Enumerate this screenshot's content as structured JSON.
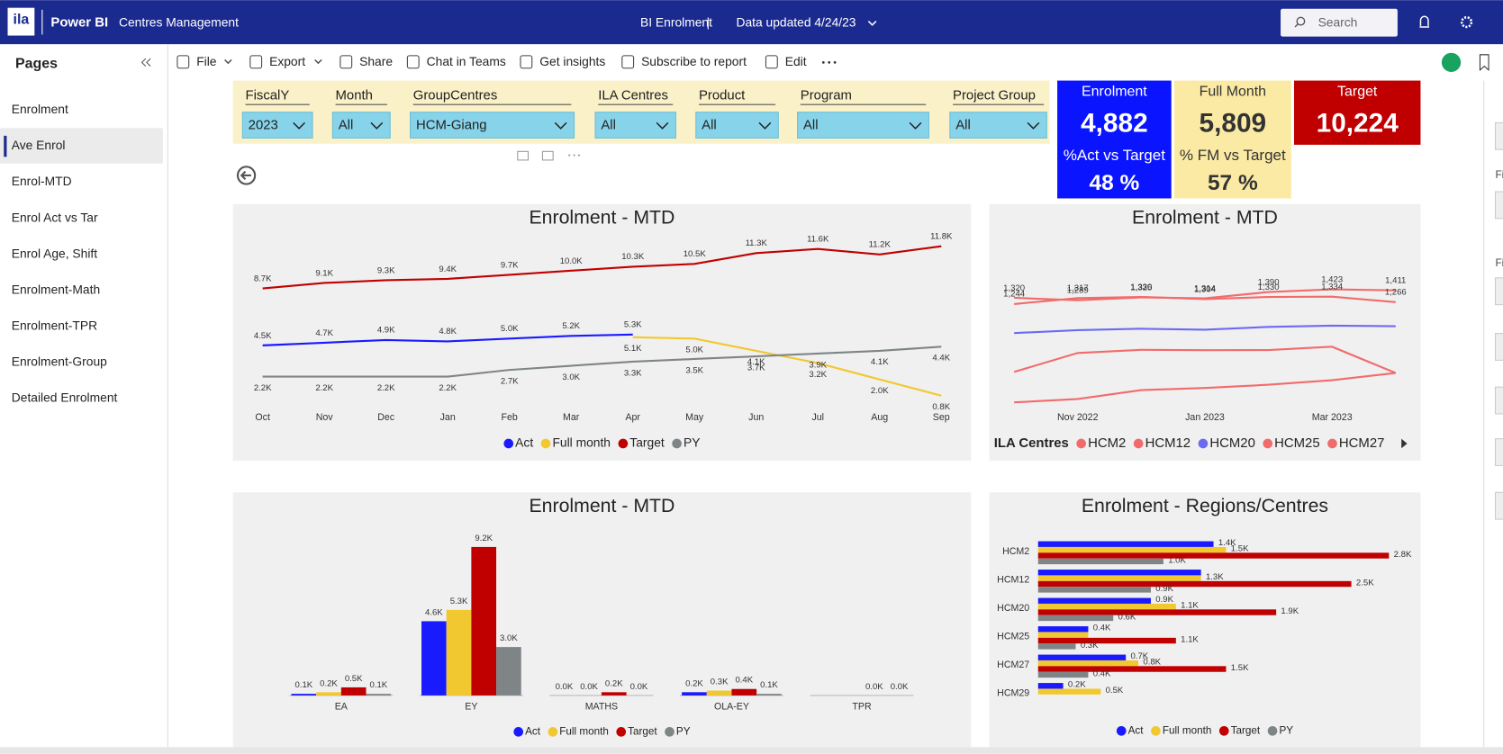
{
  "header": {
    "logo": "ila",
    "app": "Power BI",
    "workspace": "Centres Management",
    "report": "BI Enrolment",
    "separator": "|",
    "updated": "Data updated 4/24/23",
    "search": "Search"
  },
  "toolbar": [
    "File",
    "Export",
    "Share",
    "Chat in Teams",
    "Get insights",
    "Subscribe to report",
    "Edit"
  ],
  "pages": {
    "title": "Pages",
    "items": [
      "Enrolment",
      "Ave Enrol",
      "Enrol-MTD",
      "Enrol Act vs Tar",
      "Enrol Age, Shift",
      "Enrolment-Math",
      "Enrolment-TPR",
      "Enrolment-Group",
      "Detailed Enrolment"
    ],
    "active": 1
  },
  "filters": [
    {
      "label": "FiscalY",
      "value": "2023"
    },
    {
      "label": "Month",
      "value": "All"
    },
    {
      "label": "GroupCentres",
      "value": "HCM-Giang"
    },
    {
      "label": "ILA Centres",
      "value": "All"
    },
    {
      "label": "Product",
      "value": "All"
    },
    {
      "label": "Program",
      "value": "All"
    },
    {
      "label": "Project Group",
      "value": "All"
    }
  ],
  "cards": [
    {
      "title": "Enrolment",
      "value": "4,882",
      "subtitle": "%Act vs Target",
      "subvalue": "48 %"
    },
    {
      "title": "Full Month",
      "value": "5,809",
      "subtitle": "% FM vs Target",
      "subvalue": "57 %"
    },
    {
      "title": "Target",
      "value": "10,224"
    }
  ],
  "right_pane": [
    "Fi",
    "Fi"
  ],
  "chart_data": [
    {
      "type": "line",
      "title": "Enrolment - MTD",
      "categories": [
        "Oct",
        "Nov",
        "Dec",
        "Jan",
        "Feb",
        "Mar",
        "Apr",
        "May",
        "Jun",
        "Jul",
        "Aug",
        "Sep"
      ],
      "series": [
        {
          "name": "Act",
          "color": "#1a1aff",
          "values": [
            4.5,
            4.7,
            4.9,
            4.8,
            5.0,
            5.2,
            5.3,
            null,
            null,
            null,
            null,
            null
          ],
          "value_labels": [
            "4.5K",
            "4.7K",
            "4.9K",
            "4.8K",
            "5.0K",
            "5.2K",
            "5.3K",
            null,
            null,
            null,
            null,
            null
          ]
        },
        {
          "name": "Full month",
          "color": "#f2c830",
          "values": [
            null,
            null,
            null,
            null,
            null,
            null,
            5.1,
            5.0,
            4.1,
            3.2,
            2.0,
            0.8
          ],
          "value_labels": [
            null,
            null,
            null,
            null,
            null,
            null,
            "5.1K",
            "5.0K",
            "4.1K",
            "3.2K",
            "2.0K",
            "0.8K"
          ]
        },
        {
          "name": "Target",
          "color": "#c00000",
          "values": [
            8.7,
            9.1,
            9.3,
            9.4,
            9.7,
            10.0,
            10.3,
            10.5,
            11.3,
            11.6,
            11.2,
            11.8
          ],
          "value_labels": [
            "8.7K",
            "9.1K",
            "9.3K",
            "9.4K",
            "9.7K",
            "10.0K",
            "10.3K",
            "10.5K",
            "11.3K",
            "11.6K",
            "11.2K",
            "11.8K"
          ]
        },
        {
          "name": "PY",
          "color": "#7f8587",
          "values": [
            2.2,
            2.2,
            2.2,
            2.2,
            2.7,
            3.0,
            3.3,
            3.5,
            3.7,
            3.9,
            4.1,
            4.4
          ],
          "value_labels": [
            "2.2K",
            "2.2K",
            "2.2K",
            "2.2K",
            "2.7K",
            "3.0K",
            "3.3K",
            "3.5K",
            "3.7K",
            "3.9K",
            "4.1K",
            "4.4K"
          ]
        }
      ],
      "legend": "bottom"
    },
    {
      "type": "line",
      "title": "Enrolment - MTD",
      "categories": [
        null,
        "Nov 2022",
        null,
        "Jan 2023",
        null,
        "Mar 2023",
        null
      ],
      "legend_title": "ILA Centres",
      "series": [
        {
          "name": "HCM2",
          "color": "#f26b6b",
          "values": [
            1320,
            1289,
            1325,
            1314,
            1390,
            1423,
            1411
          ],
          "value_labels": [
            "1,320",
            "1,289",
            "1,325",
            "1,314",
            "1,390",
            "1,423",
            "1,411"
          ]
        },
        {
          "name": "HCM12",
          "color": "#f26b6b",
          "values": [
            1244,
            1317,
            1330,
            1304,
            1330,
            1334,
            1266
          ],
          "value_labels": [
            "1,244",
            "1,317",
            "1,330",
            "1,304",
            "1,330",
            "1,334",
            "1,266"
          ]
        },
        {
          "name": "HCM20",
          "color": "#6b6bf2",
          "values": [
            889,
            924,
            942,
            930,
            964,
            979,
            972
          ]
        },
        {
          "name": "HCM25",
          "color": "#f26b6b",
          "values": [
            413,
            645,
            684,
            679,
            680,
            722,
            401
          ]
        },
        {
          "name": "HCM27",
          "color": "#f26b6b",
          "values": [
            41,
            82,
            191,
            218,
            256,
            313,
            401
          ]
        }
      ],
      "legend": "bottom"
    },
    {
      "type": "bar",
      "title": "Enrolment - MTD",
      "categories": [
        "EA",
        "EY",
        "MATHS",
        "OLA-EY",
        "TPR"
      ],
      "series": [
        {
          "name": "Act",
          "color": "#1a1aff",
          "values": [
            0.1,
            4.6,
            0.0,
            0.2,
            null
          ],
          "value_labels": [
            "0.1K",
            "4.6K",
            "0.0K",
            "0.2K",
            null
          ]
        },
        {
          "name": "Full month",
          "color": "#f2c830",
          "values": [
            0.2,
            5.3,
            0.0,
            0.3,
            null
          ],
          "value_labels": [
            "0.2K",
            "5.3K",
            "0.0K",
            "0.3K",
            null
          ]
        },
        {
          "name": "Target",
          "color": "#c00000",
          "values": [
            0.5,
            9.2,
            0.2,
            0.4,
            0.0
          ],
          "value_labels": [
            "0.5K",
            "9.2K",
            "0.2K",
            "0.4K",
            "0.0K"
          ]
        },
        {
          "name": "PY",
          "color": "#7f8587",
          "values": [
            0.1,
            3.0,
            0.0,
            0.1,
            0.0
          ],
          "value_labels": [
            "0.1K",
            "3.0K",
            "0.0K",
            "0.1K",
            "0.0K"
          ]
        }
      ],
      "legend": "bottom"
    },
    {
      "type": "hbar",
      "title": "Enrolment - Regions/Centres",
      "categories": [
        "HCM2",
        "HCM12",
        "HCM20",
        "HCM25",
        "HCM27",
        "HCM29"
      ],
      "series": [
        {
          "name": "Act",
          "color": "#1a1aff",
          "values": [
            1.4,
            1.3,
            0.9,
            0.4,
            0.7,
            0.2
          ],
          "value_labels": [
            "1.4K",
            null,
            "0.9K",
            "0.4K",
            "0.7K",
            "0.2K"
          ]
        },
        {
          "name": "Full month",
          "color": "#f2c830",
          "values": [
            1.5,
            1.3,
            1.1,
            0.4,
            0.8,
            0.5
          ],
          "value_labels": [
            "1.5K",
            "1.3K",
            "1.1K",
            null,
            "0.8K",
            "0.5K"
          ]
        },
        {
          "name": "Target",
          "color": "#c00000",
          "values": [
            2.8,
            2.5,
            1.9,
            1.1,
            1.5,
            null
          ],
          "value_labels": [
            "2.8K",
            "2.5K",
            "1.9K",
            "1.1K",
            "1.5K",
            null
          ]
        },
        {
          "name": "PY",
          "color": "#7f8587",
          "values": [
            1.0,
            0.9,
            0.6,
            0.3,
            0.4,
            null
          ],
          "value_labels": [
            "1.0K",
            "0.9K",
            "0.6K",
            "0.3K",
            "0.4K",
            null
          ]
        }
      ],
      "legend": "bottom"
    }
  ]
}
